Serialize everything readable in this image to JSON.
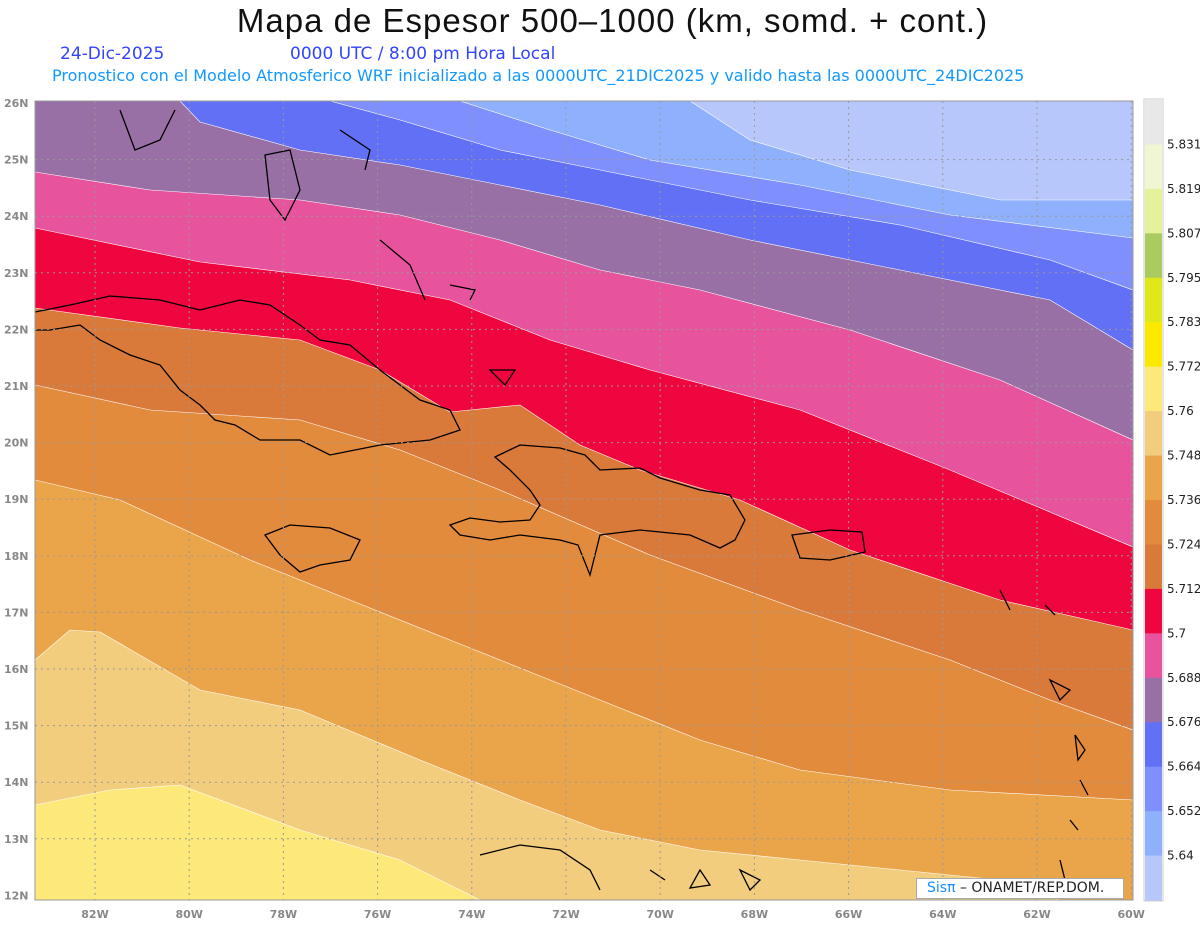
{
  "header": {
    "title": "Mapa de Espesor 500–1000 (km, somd. + cont.)",
    "date": "24-Dic-2025",
    "time": "0000 UTC / 8:00 pm Hora Local",
    "subtitle": "Pronostico con el Modelo Atmosferico WRF inicializado a las 0000UTC_21DIC2025 y valido hasta las  0000UTC_24DIC2025"
  },
  "map": {
    "lat_labels": [
      "26N",
      "25N",
      "24N",
      "23N",
      "22N",
      "21N",
      "20N",
      "19N",
      "18N",
      "17N",
      "16N",
      "15N",
      "14N",
      "13N",
      "12N"
    ],
    "lon_labels": [
      "82W",
      "80W",
      "78W",
      "76W",
      "74W",
      "72W",
      "70W",
      "68W",
      "66W",
      "64W",
      "62W",
      "60W"
    ]
  },
  "colorbar": {
    "colors": [
      "#e8e8e8",
      "#f0f5d2",
      "#e5f29a",
      "#a9cb60",
      "#e1e81a",
      "#fbe900",
      "#fde97a",
      "#f2cd7e",
      "#eaa54a",
      "#e38b3c",
      "#d97a3b",
      "#ef063e",
      "#e8539e",
      "#9870a6",
      "#6270f5",
      "#7f8ffd",
      "#8eb0fd",
      "#b7c6fb"
    ],
    "labels": [
      "5.831",
      "5.819",
      "5.807",
      "5.795",
      "5.783",
      "5.772",
      "5.76",
      "5.748",
      "5.736",
      "5.724",
      "5.712",
      "5.7",
      "5.688",
      "5.676",
      "5.664",
      "5.652",
      "5.64"
    ]
  },
  "credit": {
    "logo": "Sisπ",
    "text": " –  ONAMET/REP.DOM."
  }
}
